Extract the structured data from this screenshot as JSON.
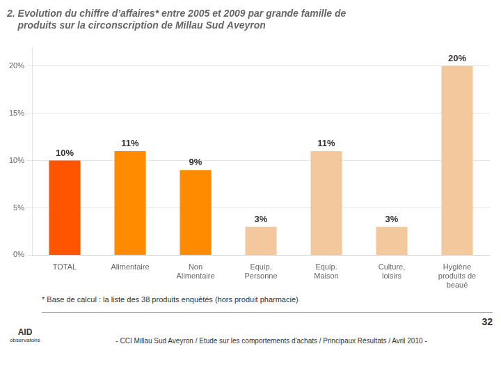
{
  "chart_data": {
    "type": "bar",
    "title": [
      "2. Evolution du chiffre d’affaires* entre 2005 et 2009 par grande famille de",
      "    produits sur la circonscription de Millau Sud Aveyron"
    ],
    "categories": [
      "TOTAL",
      "Alimentaire",
      "Non\nAlimentaire",
      "Equip.\nPersonne",
      "Equip.\nMaison",
      "Culture,\nloisirs",
      "Hygiène\nproduits de\nbeaué"
    ],
    "values": [
      10,
      11,
      9,
      3,
      11,
      3,
      20
    ],
    "value_labels": [
      "10%",
      "11%",
      "9%",
      "3%",
      "11%",
      "3%",
      "20%"
    ],
    "colors": [
      "#FF5500",
      "#FF8C00",
      "#FF8C00",
      "#F2C89C",
      "#F2C89C",
      "#F2C89C",
      "#F2C89C"
    ],
    "ylim": [
      0,
      22
    ],
    "yticks": [
      {
        "value": 0,
        "label": "0%"
      },
      {
        "value": 5,
        "label": "5%"
      },
      {
        "value": 10,
        "label": "10%"
      },
      {
        "value": 15,
        "label": "15%"
      },
      {
        "value": 20,
        "label": "20%"
      }
    ],
    "grid": true,
    "data_labels": true,
    "footnote": "* Base de calcul : la liste des 38 produits enquêtés (hors produit pharmacie)",
    "footer": "- CCI Millau Sud Aveyron /  Etude sur les comportements d'achats / Principaux Résultats / Avril 2010 -",
    "page_number": "32",
    "logo_text": [
      "AID",
      "observatoire"
    ]
  }
}
